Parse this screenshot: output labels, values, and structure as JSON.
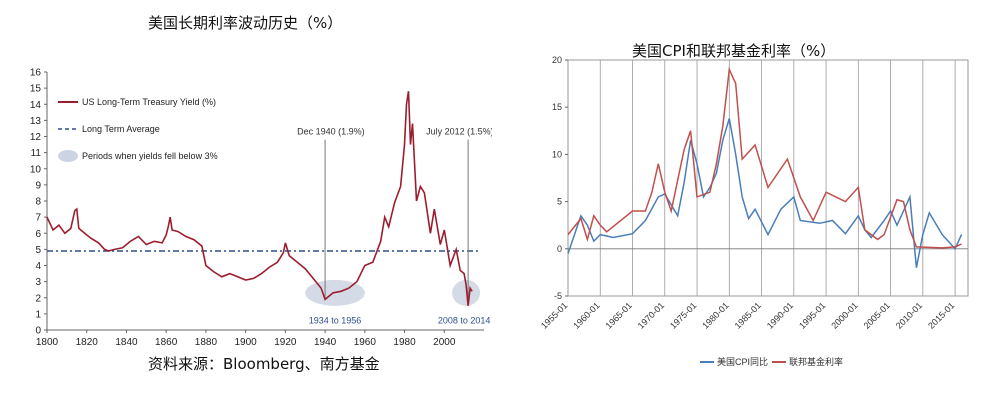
{
  "left_panel": {
    "title": "美国长期利率波动历史（%）",
    "source": "资料来源：Bloomberg、南方基金"
  },
  "right_panel": {
    "title": "美国CPI和联邦基金利率（%）"
  },
  "chart_data": [
    {
      "type": "line",
      "x_ticks": [
        "1800",
        "1820",
        "1840",
        "1860",
        "1880",
        "1900",
        "1920",
        "1940",
        "1960",
        "1980",
        "2000"
      ],
      "y_ticks": [
        "0",
        "1",
        "2",
        "3",
        "4",
        "5",
        "6",
        "7",
        "8",
        "9",
        "10",
        "11",
        "12",
        "13",
        "14",
        "15",
        "16"
      ],
      "xlim": [
        1800,
        2020
      ],
      "ylim": [
        0,
        16
      ],
      "legend": [
        "US Long-Term Treasury Yield (%)",
        "Long Term Average",
        "Periods when yields fell below 3%"
      ],
      "annotations": [
        "Dec 1940 (1.9%)",
        "July 2012 (1.5%)",
        "1934 to 1956",
        "2008 to 2014"
      ],
      "long_term_average": 4.9,
      "shaded_periods": [
        [
          1934,
          1956
        ],
        [
          2008,
          2014
        ]
      ],
      "series": [
        {
          "name": "US Long-Term Treasury Yield (%)",
          "color": "#9c1e2e",
          "points": [
            [
              1800,
              7.0
            ],
            [
              1803,
              6.2
            ],
            [
              1806,
              6.5
            ],
            [
              1809,
              6.0
            ],
            [
              1812,
              6.3
            ],
            [
              1814,
              7.4
            ],
            [
              1815,
              7.5
            ],
            [
              1816,
              6.3
            ],
            [
              1819,
              6.0
            ],
            [
              1822,
              5.7
            ],
            [
              1826,
              5.4
            ],
            [
              1829,
              5.0
            ],
            [
              1831,
              4.9
            ],
            [
              1834,
              5.0
            ],
            [
              1838,
              5.1
            ],
            [
              1842,
              5.5
            ],
            [
              1846,
              5.8
            ],
            [
              1850,
              5.3
            ],
            [
              1854,
              5.5
            ],
            [
              1858,
              5.4
            ],
            [
              1860,
              5.9
            ],
            [
              1861,
              6.4
            ],
            [
              1862,
              7.0
            ],
            [
              1863,
              6.2
            ],
            [
              1866,
              6.1
            ],
            [
              1870,
              5.8
            ],
            [
              1874,
              5.6
            ],
            [
              1878,
              5.2
            ],
            [
              1880,
              4.0
            ],
            [
              1884,
              3.6
            ],
            [
              1888,
              3.3
            ],
            [
              1892,
              3.5
            ],
            [
              1896,
              3.3
            ],
            [
              1900,
              3.1
            ],
            [
              1904,
              3.2
            ],
            [
              1908,
              3.5
            ],
            [
              1912,
              3.9
            ],
            [
              1916,
              4.2
            ],
            [
              1919,
              4.8
            ],
            [
              1920,
              5.4
            ],
            [
              1922,
              4.6
            ],
            [
              1926,
              4.2
            ],
            [
              1930,
              3.8
            ],
            [
              1934,
              3.2
            ],
            [
              1938,
              2.6
            ],
            [
              1940,
              1.9
            ],
            [
              1944,
              2.3
            ],
            [
              1948,
              2.4
            ],
            [
              1952,
              2.6
            ],
            [
              1956,
              3.0
            ],
            [
              1960,
              4.0
            ],
            [
              1964,
              4.2
            ],
            [
              1968,
              5.5
            ],
            [
              1970,
              7.0
            ],
            [
              1972,
              6.4
            ],
            [
              1975,
              7.9
            ],
            [
              1978,
              8.9
            ],
            [
              1980,
              11.5
            ],
            [
              1981,
              14.0
            ],
            [
              1982,
              14.8
            ],
            [
              1983,
              11.5
            ],
            [
              1984,
              12.8
            ],
            [
              1986,
              8.0
            ],
            [
              1988,
              8.9
            ],
            [
              1990,
              8.5
            ],
            [
              1993,
              6.0
            ],
            [
              1995,
              7.5
            ],
            [
              1998,
              5.3
            ],
            [
              2000,
              6.2
            ],
            [
              2003,
              4.0
            ],
            [
              2006,
              5.0
            ],
            [
              2008,
              3.7
            ],
            [
              2010,
              3.5
            ],
            [
              2011,
              2.8
            ],
            [
              2012,
              1.5
            ],
            [
              2013,
              2.6
            ],
            [
              2014,
              2.4
            ]
          ]
        }
      ]
    },
    {
      "type": "line",
      "x_ticks": [
        "1955-01",
        "1960-01",
        "1965-01",
        "1970-01",
        "1975-01",
        "1980-01",
        "1985-01",
        "1990-01",
        "1995-01",
        "2000-01",
        "2005-01",
        "2010-01",
        "2015-01"
      ],
      "y_ticks": [
        "-5",
        "0",
        "5",
        "10",
        "15",
        "20"
      ],
      "xlim": [
        1955,
        2017
      ],
      "ylim": [
        -5,
        20
      ],
      "legend": [
        "美国CPI同比",
        "联邦基金利率"
      ],
      "series": [
        {
          "name": "美国CPI同比",
          "color": "#4a7ebb",
          "points": [
            [
              1955,
              -0.5
            ],
            [
              1956,
              1.5
            ],
            [
              1957,
              3.5
            ],
            [
              1958,
              2.5
            ],
            [
              1959,
              0.8
            ],
            [
              1960,
              1.5
            ],
            [
              1962,
              1.2
            ],
            [
              1965,
              1.6
            ],
            [
              1967,
              3.0
            ],
            [
              1969,
              5.5
            ],
            [
              1970,
              5.8
            ],
            [
              1972,
              3.5
            ],
            [
              1973,
              7.0
            ],
            [
              1974,
              11.5
            ],
            [
              1975,
              9.0
            ],
            [
              1976,
              5.5
            ],
            [
              1977,
              6.5
            ],
            [
              1978,
              8.0
            ],
            [
              1979,
              11.5
            ],
            [
              1980,
              13.8
            ],
            [
              1981,
              10.0
            ],
            [
              1982,
              5.5
            ],
            [
              1983,
              3.2
            ],
            [
              1984,
              4.2
            ],
            [
              1986,
              1.5
            ],
            [
              1988,
              4.2
            ],
            [
              1990,
              5.5
            ],
            [
              1991,
              3.0
            ],
            [
              1994,
              2.7
            ],
            [
              1996,
              3.0
            ],
            [
              1998,
              1.6
            ],
            [
              2000,
              3.5
            ],
            [
              2001,
              2.0
            ],
            [
              2002,
              1.2
            ],
            [
              2004,
              3.0
            ],
            [
              2005,
              4.0
            ],
            [
              2006,
              2.5
            ],
            [
              2007,
              4.0
            ],
            [
              2008,
              5.5
            ],
            [
              2009,
              -2.0
            ],
            [
              2010,
              1.5
            ],
            [
              2011,
              3.8
            ],
            [
              2013,
              1.5
            ],
            [
              2015,
              0.0
            ],
            [
              2016,
              1.5
            ]
          ]
        },
        {
          "name": "联邦基金利率",
          "color": "#c0504d",
          "points": [
            [
              1955,
              1.5
            ],
            [
              1957,
              3.2
            ],
            [
              1958,
              1.0
            ],
            [
              1959,
              3.5
            ],
            [
              1960,
              2.5
            ],
            [
              1961,
              1.8
            ],
            [
              1965,
              4.0
            ],
            [
              1967,
              4.0
            ],
            [
              1968,
              6.0
            ],
            [
              1969,
              9.0
            ],
            [
              1970,
              6.0
            ],
            [
              1971,
              4.0
            ],
            [
              1973,
              10.5
            ],
            [
              1974,
              12.5
            ],
            [
              1975,
              5.5
            ],
            [
              1977,
              6.0
            ],
            [
              1978,
              9.0
            ],
            [
              1979,
              13.0
            ],
            [
              1980,
              19.0
            ],
            [
              1981,
              17.5
            ],
            [
              1982,
              9.5
            ],
            [
              1984,
              11.0
            ],
            [
              1986,
              6.5
            ],
            [
              1989,
              9.5
            ],
            [
              1991,
              5.5
            ],
            [
              1993,
              3.0
            ],
            [
              1995,
              6.0
            ],
            [
              1998,
              5.0
            ],
            [
              2000,
              6.5
            ],
            [
              2001,
              2.0
            ],
            [
              2003,
              1.0
            ],
            [
              2004,
              1.5
            ],
            [
              2006,
              5.2
            ],
            [
              2007,
              5.0
            ],
            [
              2008,
              2.0
            ],
            [
              2009,
              0.2
            ],
            [
              2013,
              0.1
            ],
            [
              2015,
              0.2
            ],
            [
              2016,
              0.5
            ]
          ]
        }
      ]
    }
  ]
}
